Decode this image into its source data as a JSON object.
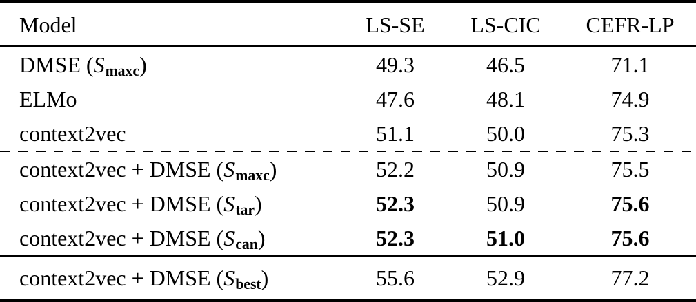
{
  "table": {
    "colors": {
      "text": "#000000",
      "background": "#ffffff",
      "rule": "#000000"
    },
    "header": {
      "model_label": "Model",
      "metric_labels": [
        "LS-SE",
        "LS-CIC",
        "CEFR-LP"
      ]
    },
    "rows": [
      {
        "prefix": "DMSE (",
        "symbol": "S",
        "subscript": "maxc",
        "suffix": ")",
        "values": [
          "49.3",
          "46.5",
          "71.1"
        ],
        "bold": [
          false,
          false,
          false
        ]
      },
      {
        "prefix": "ELMo",
        "symbol": "",
        "subscript": "",
        "suffix": "",
        "values": [
          "47.6",
          "48.1",
          "74.9"
        ],
        "bold": [
          false,
          false,
          false
        ]
      },
      {
        "prefix": "context2vec",
        "symbol": "",
        "subscript": "",
        "suffix": "",
        "values": [
          "51.1",
          "50.0",
          "75.3"
        ],
        "bold": [
          false,
          false,
          false
        ]
      },
      {
        "prefix": "context2vec + DMSE (",
        "symbol": "S",
        "subscript": "maxc",
        "suffix": ")",
        "values": [
          "52.2",
          "50.9",
          "75.5"
        ],
        "bold": [
          false,
          false,
          false
        ]
      },
      {
        "prefix": "context2vec + DMSE (",
        "symbol": "S",
        "subscript": "tar",
        "suffix": ")",
        "values": [
          "52.3",
          "50.9",
          "75.6"
        ],
        "bold": [
          true,
          false,
          true
        ]
      },
      {
        "prefix": "context2vec + DMSE (",
        "symbol": "S",
        "subscript": "can",
        "suffix": ")",
        "values": [
          "52.3",
          "51.0",
          "75.6"
        ],
        "bold": [
          true,
          true,
          true
        ]
      },
      {
        "prefix": "context2vec + DMSE (",
        "symbol": "S",
        "subscript": "best",
        "suffix": ")",
        "values": [
          "55.6",
          "52.9",
          "77.2"
        ],
        "bold": [
          false,
          false,
          false
        ]
      }
    ]
  }
}
